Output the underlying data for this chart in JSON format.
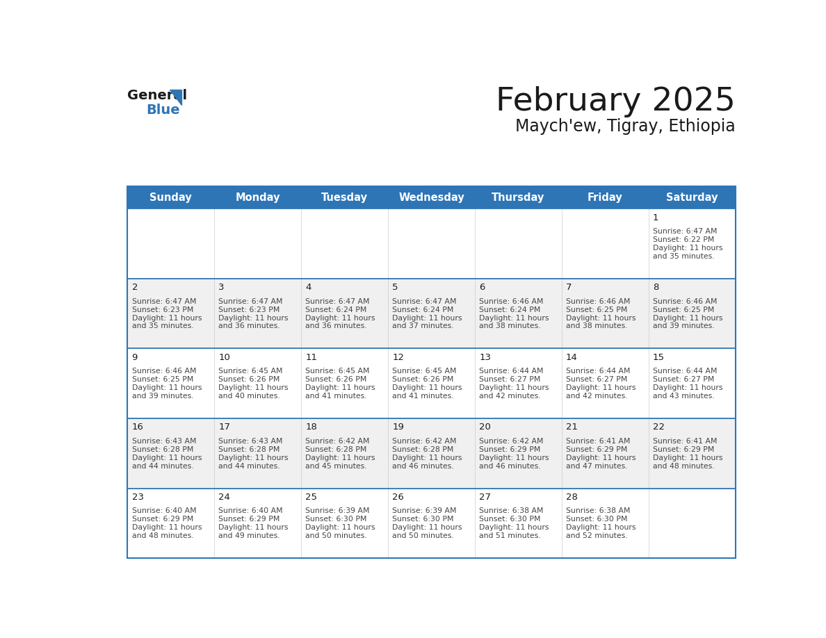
{
  "title": "February 2025",
  "subtitle": "Maych'ew, Tigray, Ethiopia",
  "header_bg": "#2e75b6",
  "header_text_color": "#ffffff",
  "days_of_week": [
    "Sunday",
    "Monday",
    "Tuesday",
    "Wednesday",
    "Thursday",
    "Friday",
    "Saturday"
  ],
  "grid_line_color": "#2e75b6",
  "cell_bg_even": "#ffffff",
  "cell_bg_odd": "#f0f0f0",
  "day_number_color": "#1a1a1a",
  "info_text_color": "#444444",
  "calendar_data": [
    [
      null,
      null,
      null,
      null,
      null,
      null,
      {
        "day": "1",
        "sunrise": "6:47 AM",
        "sunset": "6:22 PM",
        "daylight": "11 hours",
        "daylight2": "and 35 minutes."
      }
    ],
    [
      {
        "day": "2",
        "sunrise": "6:47 AM",
        "sunset": "6:23 PM",
        "daylight": "11 hours",
        "daylight2": "and 35 minutes."
      },
      {
        "day": "3",
        "sunrise": "6:47 AM",
        "sunset": "6:23 PM",
        "daylight": "11 hours",
        "daylight2": "and 36 minutes."
      },
      {
        "day": "4",
        "sunrise": "6:47 AM",
        "sunset": "6:24 PM",
        "daylight": "11 hours",
        "daylight2": "and 36 minutes."
      },
      {
        "day": "5",
        "sunrise": "6:47 AM",
        "sunset": "6:24 PM",
        "daylight": "11 hours",
        "daylight2": "and 37 minutes."
      },
      {
        "day": "6",
        "sunrise": "6:46 AM",
        "sunset": "6:24 PM",
        "daylight": "11 hours",
        "daylight2": "and 38 minutes."
      },
      {
        "day": "7",
        "sunrise": "6:46 AM",
        "sunset": "6:25 PM",
        "daylight": "11 hours",
        "daylight2": "and 38 minutes."
      },
      {
        "day": "8",
        "sunrise": "6:46 AM",
        "sunset": "6:25 PM",
        "daylight": "11 hours",
        "daylight2": "and 39 minutes."
      }
    ],
    [
      {
        "day": "9",
        "sunrise": "6:46 AM",
        "sunset": "6:25 PM",
        "daylight": "11 hours",
        "daylight2": "and 39 minutes."
      },
      {
        "day": "10",
        "sunrise": "6:45 AM",
        "sunset": "6:26 PM",
        "daylight": "11 hours",
        "daylight2": "and 40 minutes."
      },
      {
        "day": "11",
        "sunrise": "6:45 AM",
        "sunset": "6:26 PM",
        "daylight": "11 hours",
        "daylight2": "and 41 minutes."
      },
      {
        "day": "12",
        "sunrise": "6:45 AM",
        "sunset": "6:26 PM",
        "daylight": "11 hours",
        "daylight2": "and 41 minutes."
      },
      {
        "day": "13",
        "sunrise": "6:44 AM",
        "sunset": "6:27 PM",
        "daylight": "11 hours",
        "daylight2": "and 42 minutes."
      },
      {
        "day": "14",
        "sunrise": "6:44 AM",
        "sunset": "6:27 PM",
        "daylight": "11 hours",
        "daylight2": "and 42 minutes."
      },
      {
        "day": "15",
        "sunrise": "6:44 AM",
        "sunset": "6:27 PM",
        "daylight": "11 hours",
        "daylight2": "and 43 minutes."
      }
    ],
    [
      {
        "day": "16",
        "sunrise": "6:43 AM",
        "sunset": "6:28 PM",
        "daylight": "11 hours",
        "daylight2": "and 44 minutes."
      },
      {
        "day": "17",
        "sunrise": "6:43 AM",
        "sunset": "6:28 PM",
        "daylight": "11 hours",
        "daylight2": "and 44 minutes."
      },
      {
        "day": "18",
        "sunrise": "6:42 AM",
        "sunset": "6:28 PM",
        "daylight": "11 hours",
        "daylight2": "and 45 minutes."
      },
      {
        "day": "19",
        "sunrise": "6:42 AM",
        "sunset": "6:28 PM",
        "daylight": "11 hours",
        "daylight2": "and 46 minutes."
      },
      {
        "day": "20",
        "sunrise": "6:42 AM",
        "sunset": "6:29 PM",
        "daylight": "11 hours",
        "daylight2": "and 46 minutes."
      },
      {
        "day": "21",
        "sunrise": "6:41 AM",
        "sunset": "6:29 PM",
        "daylight": "11 hours",
        "daylight2": "and 47 minutes."
      },
      {
        "day": "22",
        "sunrise": "6:41 AM",
        "sunset": "6:29 PM",
        "daylight": "11 hours",
        "daylight2": "and 48 minutes."
      }
    ],
    [
      {
        "day": "23",
        "sunrise": "6:40 AM",
        "sunset": "6:29 PM",
        "daylight": "11 hours",
        "daylight2": "and 48 minutes."
      },
      {
        "day": "24",
        "sunrise": "6:40 AM",
        "sunset": "6:29 PM",
        "daylight": "11 hours",
        "daylight2": "and 49 minutes."
      },
      {
        "day": "25",
        "sunrise": "6:39 AM",
        "sunset": "6:30 PM",
        "daylight": "11 hours",
        "daylight2": "and 50 minutes."
      },
      {
        "day": "26",
        "sunrise": "6:39 AM",
        "sunset": "6:30 PM",
        "daylight": "11 hours",
        "daylight2": "and 50 minutes."
      },
      {
        "day": "27",
        "sunrise": "6:38 AM",
        "sunset": "6:30 PM",
        "daylight": "11 hours",
        "daylight2": "and 51 minutes."
      },
      {
        "day": "28",
        "sunrise": "6:38 AM",
        "sunset": "6:30 PM",
        "daylight": "11 hours",
        "daylight2": "and 52 minutes."
      },
      null
    ]
  ]
}
